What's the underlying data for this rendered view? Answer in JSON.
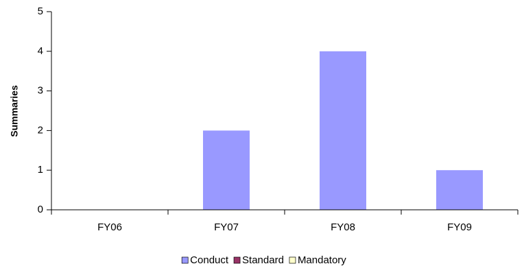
{
  "chart_data": {
    "type": "bar",
    "stacked": true,
    "y_label": "Summaries",
    "categories": [
      "FY06",
      "FY07",
      "FY08",
      "FY09"
    ],
    "series": [
      {
        "name": "Conduct",
        "color": "#9999ff",
        "values": [
          0,
          2,
          4,
          1
        ]
      },
      {
        "name": "Standard",
        "color": "#993366",
        "values": [
          0,
          0,
          0,
          0
        ]
      },
      {
        "name": "Mandatory",
        "color": "#ffffcc",
        "values": [
          0,
          0,
          0,
          0
        ]
      }
    ],
    "ylim": [
      0,
      5
    ],
    "yticks": [
      0,
      1,
      2,
      3,
      4,
      5
    ],
    "grid": false,
    "legend": "bottom"
  }
}
